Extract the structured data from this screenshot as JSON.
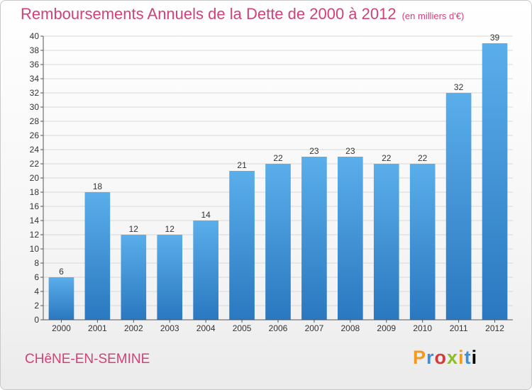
{
  "header": {
    "title": "Remboursements Annuels de la Dette de 2000 à 2012",
    "unit": "(en milliers d'€)"
  },
  "footer": {
    "commune": "CHêNE-EN-SEMINE",
    "logo": [
      "P",
      "r",
      "o",
      "x",
      "i",
      "t",
      "i"
    ]
  },
  "colors": {
    "title": "#d0427a",
    "bar_top": "#5aaeea",
    "bar_bottom": "#2a78c0",
    "grid": "#d9d9d9"
  },
  "chart_data": {
    "type": "bar",
    "title": "Remboursements Annuels de la Dette de 2000 à 2012",
    "subtitle": "(en milliers d'€)",
    "categories": [
      "2000",
      "2001",
      "2002",
      "2003",
      "2004",
      "2005",
      "2006",
      "2007",
      "2008",
      "2009",
      "2010",
      "2011",
      "2012"
    ],
    "values": [
      6,
      18,
      12,
      12,
      14,
      21,
      22,
      23,
      23,
      22,
      22,
      32,
      39
    ],
    "ylim": [
      0,
      40
    ],
    "ytick_step": 2,
    "grid": true,
    "legend": "none"
  }
}
